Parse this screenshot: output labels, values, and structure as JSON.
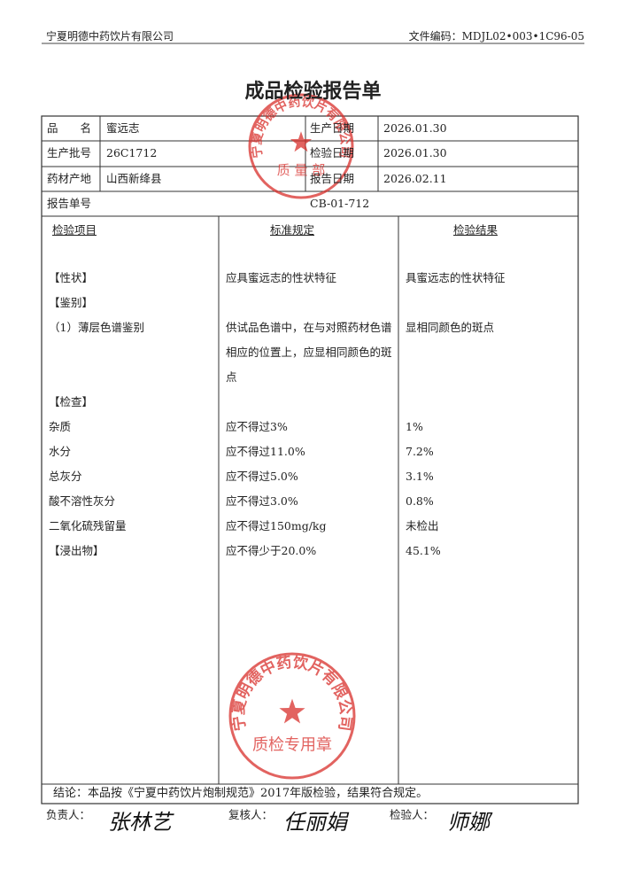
{
  "header": {
    "company": "宁夏明德中药饮片有限公司",
    "doc_code": "文件编码：MDJL02•003•1C96-05"
  },
  "title": "成品检验报告单",
  "info": {
    "rows": [
      [
        {
          "label": "品　　名",
          "value": "蜜远志"
        },
        {
          "label": "生产日期",
          "value": "2026.01.30"
        }
      ],
      [
        {
          "label": "生产批号",
          "value": "26C1712"
        },
        {
          "label": "检验日期",
          "value": "2026.01.30"
        }
      ],
      [
        {
          "label": "药材产地",
          "value": "山西新绛县"
        },
        {
          "label": "报告日期",
          "value": "2026.02.11"
        }
      ]
    ],
    "report_no_label": "报告单号",
    "report_no": "CB-01-712"
  },
  "table": {
    "headers": [
      "检验项目",
      "标准规定",
      "检验结果"
    ],
    "rows": [
      {
        "item": "【性状】",
        "standard": "应具蜜远志的性状特征",
        "result": "具蜜远志的性状特征"
      },
      {
        "item": "【鉴别】"
      },
      {
        "item": "（1）薄层色谱鉴别",
        "standard": "供试品色谱中，在与对照药材色谱相应的位置上，应显相同颜色的斑点",
        "result": "显相同颜色的斑点"
      },
      {
        "item": "【检查】"
      },
      {
        "item": "杂质",
        "standard": "应不得过3%",
        "result": "1%"
      },
      {
        "item": "水分",
        "standard": "应不得过11.0%",
        "result": "7.2%"
      },
      {
        "item": "总灰分",
        "standard": "应不得过5.0%",
        "result": "3.1%"
      },
      {
        "item": "酸不溶性灰分",
        "standard": "应不得过3.0%",
        "result": "0.8%"
      },
      {
        "item": "二氧化硫残留量",
        "standard": "应不得过150mg/kg",
        "result": "未检出"
      },
      {
        "item": "【浸出物】",
        "standard": "应不得少于20.0%",
        "result": "45.1%"
      }
    ]
  },
  "conclusion": "结论：本品按《宁夏中药饮片炮制规范》2017年版检验，结果符合规定。",
  "signatures": [
    {
      "label": "负责人：",
      "name": "张林艺"
    },
    {
      "label": "复核人：",
      "name": "任丽娟"
    },
    {
      "label": "检验人：",
      "name": "师娜"
    }
  ],
  "stamps": [
    {
      "ring": "宁夏明德中药饮片有限公司",
      "center": "质 量 部"
    },
    {
      "ring": "宁夏明德中药饮片有限公司",
      "center": "质检专用章"
    }
  ]
}
